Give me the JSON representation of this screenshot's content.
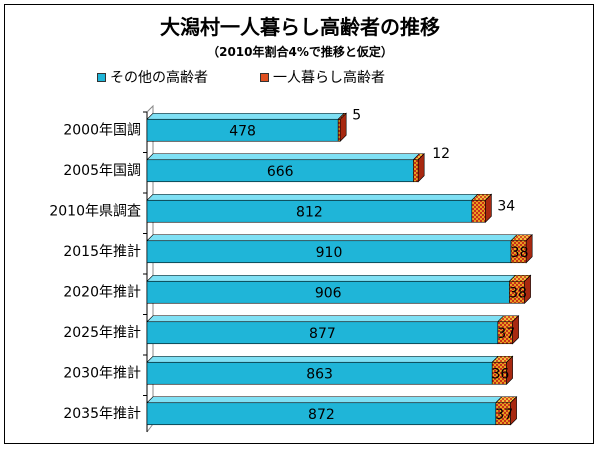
{
  "chart_data": {
    "type": "bar",
    "orientation": "horizontal",
    "stacked": true,
    "title": "大潟村一人暮らし高齢者の推移",
    "subtitle": "（2010年割合4%で推移と仮定）",
    "categories": [
      "2000年国調",
      "2005年国調",
      "2010年県調査",
      "2015年推計",
      "2020年推計",
      "2025年推計",
      "2030年推計",
      "2035年推計"
    ],
    "series": [
      {
        "name": "その他の高齢者",
        "values": [
          478,
          666,
          812,
          910,
          906,
          877,
          863,
          872
        ],
        "color": "#1fb5d8"
      },
      {
        "name": "一人暮らし高齢者",
        "values": [
          5,
          12,
          34,
          38,
          38,
          37,
          36,
          37
        ],
        "color": "#e8a020"
      }
    ],
    "xlim": [
      0,
      1000
    ],
    "grid": false,
    "legend_position": "top",
    "data_labels": [
      [
        "478",
        "666",
        "812",
        "910",
        "906",
        "877",
        "863",
        "872"
      ],
      [
        "5",
        "12",
        "34",
        "38",
        "38",
        "37",
        "36",
        "37"
      ]
    ]
  }
}
